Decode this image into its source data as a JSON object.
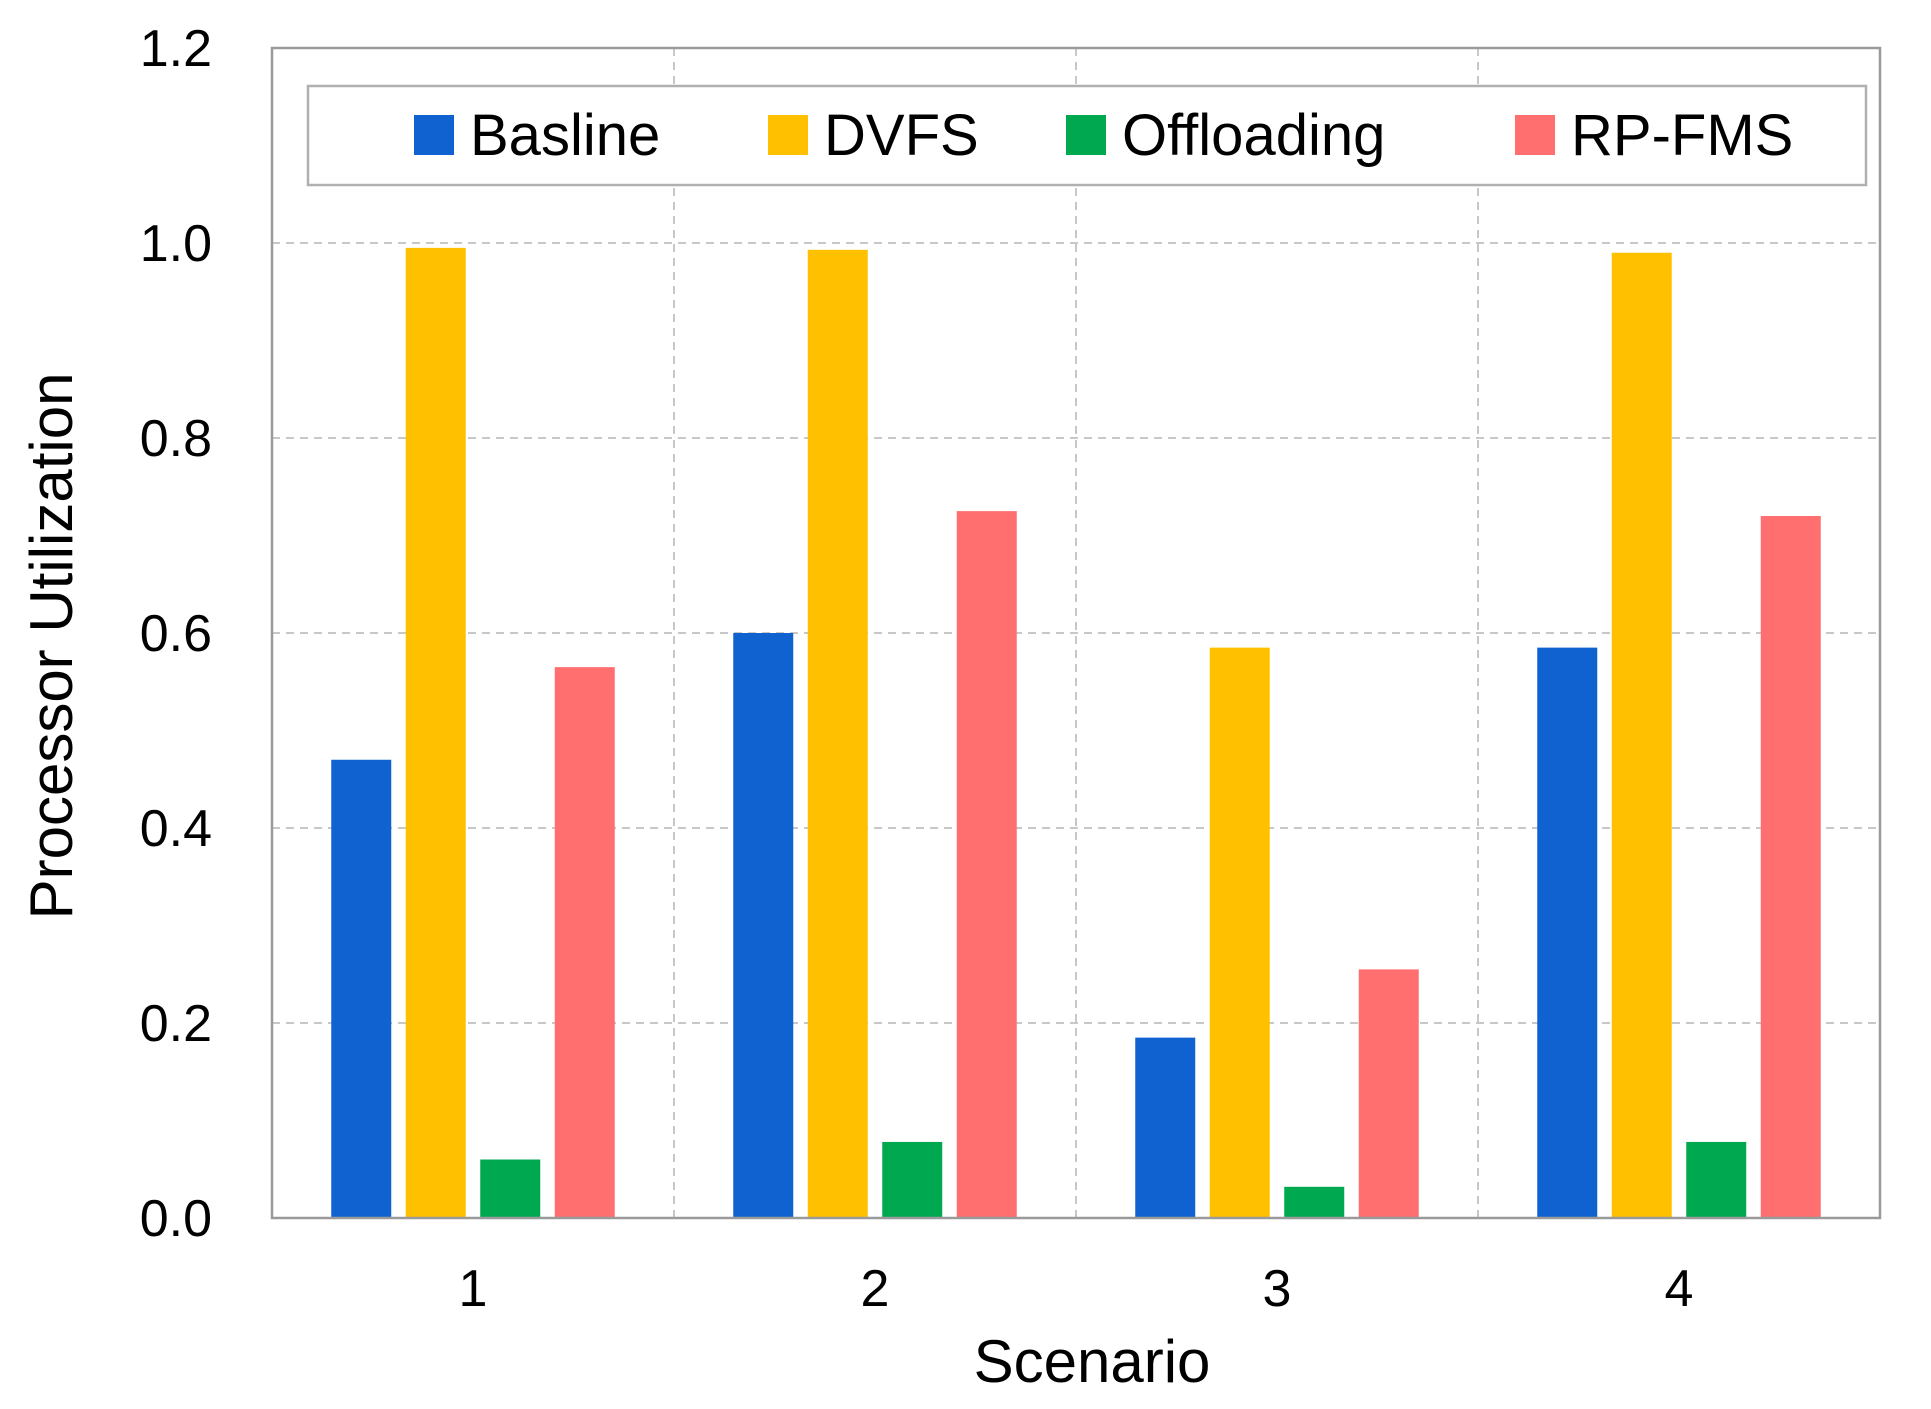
{
  "chart_data": {
    "type": "bar",
    "title": "",
    "xlabel": "Scenario",
    "ylabel": "Processor Utilization",
    "categories": [
      "1",
      "2",
      "3",
      "4"
    ],
    "ylim": [
      0.0,
      1.2
    ],
    "yticks": [
      "0.0",
      "0.2",
      "0.4",
      "0.6",
      "0.8",
      "1.0",
      "1.2"
    ],
    "grid": true,
    "legend_position": "top",
    "series": [
      {
        "name": "Basline",
        "color": "#1062d0",
        "values": [
          0.47,
          0.6,
          0.185,
          0.585
        ]
      },
      {
        "name": "DVFS",
        "color": "#ffc000",
        "values": [
          0.995,
          0.993,
          0.585,
          0.99
        ]
      },
      {
        "name": "Offloading",
        "color": "#00a84f",
        "values": [
          0.06,
          0.078,
          0.032,
          0.078
        ]
      },
      {
        "name": "RP-FMS",
        "color": "#ff6f6f",
        "values": [
          0.565,
          0.725,
          0.255,
          0.72
        ]
      }
    ]
  }
}
